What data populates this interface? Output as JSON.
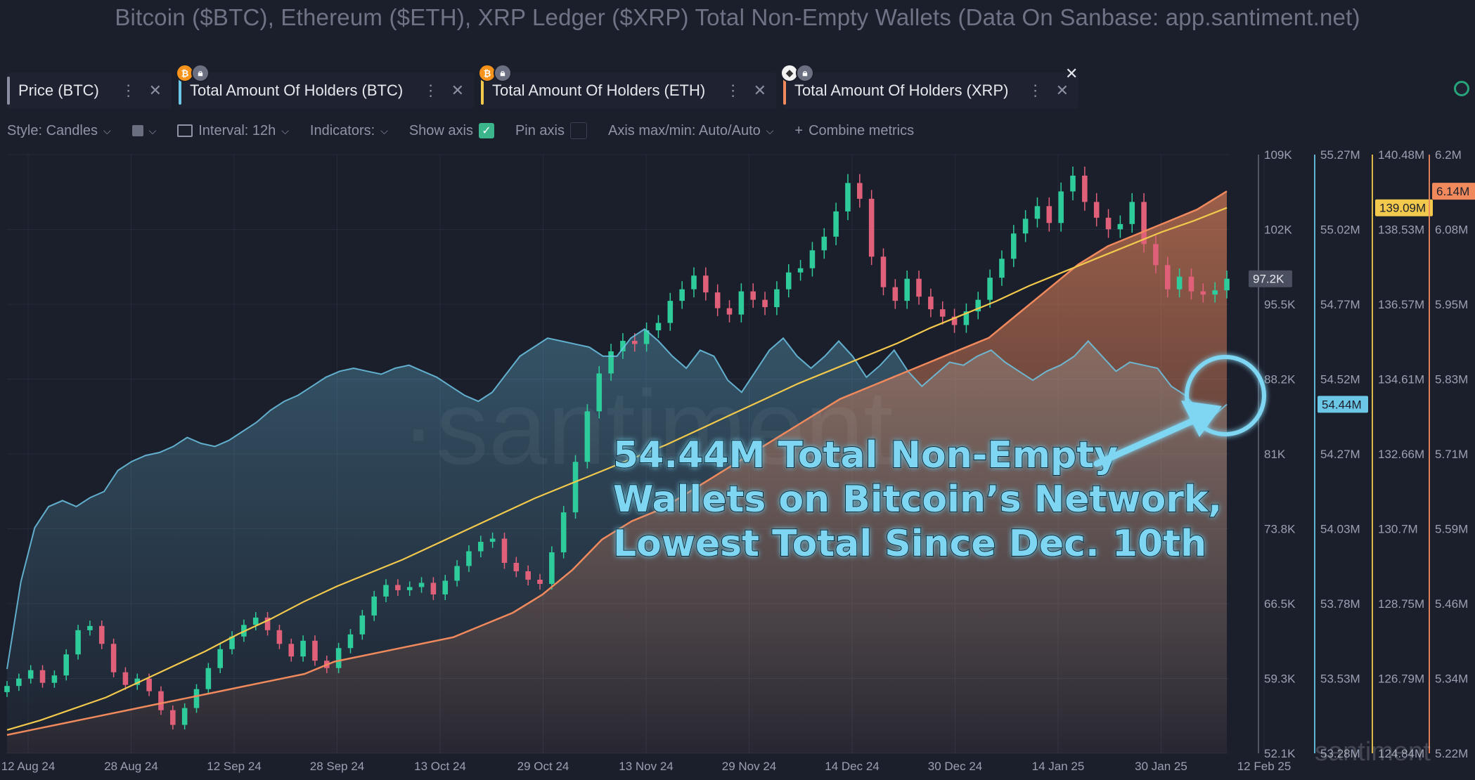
{
  "title": "Bitcoin ($BTC), Ethereum ($ETH), XRP Ledger ($XRP) Total Non-Empty Wallets (Data On Sanbase: app.santiment.net)",
  "tabs": [
    {
      "label": "Price (BTC)",
      "color": "#8a90a2",
      "badges": []
    },
    {
      "label": "Total Amount Of Holders (BTC)",
      "color": "#6cc6e6",
      "badges": [
        "B",
        "lock"
      ]
    },
    {
      "label": "Total Amount Of Holders (ETH)",
      "color": "#f2c94c",
      "badges": [
        "B",
        "lock"
      ]
    },
    {
      "label": "Total Amount Of Holders (XRP)",
      "color": "#f08a5d",
      "badges": [
        "ETH",
        "lock"
      ]
    }
  ],
  "toolbar": {
    "style": "Style: Candles",
    "interval": "Interval: 12h",
    "indicators": "Indicators:",
    "show_axis": "Show axis",
    "pin_axis": "Pin axis",
    "axis_maxmin": "Axis max/min: Auto/Auto",
    "combine": "Combine metrics"
  },
  "watermark": "·santiment",
  "brand": "santiment",
  "annotation": [
    "54.44M Total Non-Empty",
    "Wallets on Bitcoin’s Network,",
    "Lowest Total Since Dec. 10th"
  ],
  "colors": {
    "bg": "#1b1e2b",
    "up": "#2ecc9a",
    "down": "#e0607a",
    "btc_holders": "#6cc6e6",
    "eth_holders": "#f2c94c",
    "xrp_holders": "#f08a5d",
    "annotation": "#7fd6f2"
  },
  "chart_data": {
    "type": "line",
    "x_ticks": [
      "12 Aug 24",
      "28 Aug 24",
      "12 Sep 24",
      "28 Sep 24",
      "13 Oct 24",
      "29 Oct 24",
      "13 Nov 24",
      "29 Nov 24",
      "14 Dec 24",
      "30 Dec 24",
      "14 Jan 25",
      "30 Jan 25",
      "12 Feb 25"
    ],
    "axes": [
      {
        "name": "Price (BTC)",
        "ticks": [
          "109K",
          "102K",
          "95.5K",
          "88.2K",
          "81K",
          "73.8K",
          "66.5K",
          "59.3K",
          "52.1K"
        ],
        "range": [
          52100,
          109000
        ],
        "current": "97.2K",
        "color": "#8a90a2"
      },
      {
        "name": "Total Amount Of Holders (BTC)",
        "ticks": [
          "55.27M",
          "55.02M",
          "54.77M",
          "54.52M",
          "54.27M",
          "54.03M",
          "53.78M",
          "53.53M",
          "53.28M"
        ],
        "range": [
          53.28,
          55.27
        ],
        "current": "54.44M",
        "color": "#6cc6e6"
      },
      {
        "name": "Total Amount Of Holders (ETH)",
        "ticks": [
          "140.48M",
          "138.53M",
          "136.57M",
          "134.61M",
          "132.66M",
          "130.7M",
          "128.75M",
          "126.79M",
          "124.84M"
        ],
        "range": [
          124.84,
          140.48
        ],
        "current": "139.09M",
        "color": "#f2c94c"
      },
      {
        "name": "Total Amount Of Holders (XRP)",
        "ticks": [
          "6.2M",
          "6.08M",
          "5.95M",
          "5.83M",
          "5.71M",
          "5.59M",
          "5.46M",
          "5.34M",
          "5.22M"
        ],
        "range": [
          5.22,
          6.2
        ],
        "current": "6.14M",
        "color": "#f08a5d"
      }
    ],
    "series": [
      {
        "name": "Price (BTC)",
        "style": "candles",
        "values": [
          58500,
          59200,
          60000,
          58800,
          59500,
          61500,
          63800,
          64200,
          62500,
          59800,
          58600,
          59200,
          58000,
          56200,
          54800,
          56400,
          58200,
          60200,
          62000,
          63200,
          64300,
          65000,
          63800,
          62500,
          61300,
          62800,
          60900,
          60200,
          62100,
          63400,
          65200,
          67000,
          68100,
          67600,
          67900,
          68300,
          67200,
          68500,
          69900,
          71300,
          72200,
          72500,
          70200,
          69400,
          68600,
          68200,
          71200,
          75000,
          79800,
          84600,
          88200,
          90300,
          91300,
          91000,
          92300,
          93000,
          95100,
          96200,
          97500,
          95900,
          94400,
          93800,
          96000,
          95200,
          94500,
          96200,
          97800,
          98200,
          99900,
          101200,
          103600,
          106300,
          104800,
          99300,
          96400,
          95100,
          97200,
          95500,
          94300,
          93600,
          92800,
          94100,
          95200,
          97300,
          99100,
          101500,
          102900,
          104100,
          102500,
          105500,
          107000,
          104500,
          103000,
          101900,
          102400,
          104500,
          100500,
          98500,
          96200,
          97400,
          96000,
          95700,
          96100,
          97200
        ],
        "range": [
          52100,
          109000
        ]
      },
      {
        "name": "Total Amount Of Holders (BTC)",
        "style": "area",
        "color": "#6cc6e6",
        "values": [
          53.56,
          53.85,
          54.03,
          54.1,
          54.12,
          54.1,
          54.13,
          54.15,
          54.22,
          54.25,
          54.27,
          54.28,
          54.3,
          54.33,
          54.31,
          54.3,
          54.32,
          54.35,
          54.38,
          54.42,
          54.45,
          54.47,
          54.5,
          54.53,
          54.55,
          54.56,
          54.55,
          54.54,
          54.56,
          54.57,
          54.55,
          54.53,
          54.5,
          54.47,
          54.45,
          54.48,
          54.54,
          54.6,
          54.63,
          54.66,
          54.65,
          54.64,
          54.63,
          54.6,
          54.6,
          54.66,
          54.69,
          54.65,
          54.6,
          54.56,
          54.62,
          54.6,
          54.52,
          54.48,
          54.55,
          54.62,
          54.66,
          54.6,
          54.56,
          54.6,
          54.65,
          54.6,
          54.53,
          54.57,
          54.62,
          54.55,
          54.5,
          54.54,
          54.58,
          54.57,
          54.6,
          54.62,
          54.58,
          54.55,
          54.52,
          54.55,
          54.57,
          54.6,
          54.65,
          54.6,
          54.55,
          54.58,
          54.57,
          54.56,
          54.5,
          54.47,
          54.42,
          54.4,
          54.44
        ]
      },
      {
        "name": "Total Amount Of Holders (ETH)",
        "style": "line",
        "color": "#f2c94c",
        "values": [
          125.45,
          125.7,
          126.0,
          126.3,
          126.7,
          127.1,
          127.5,
          127.95,
          128.35,
          128.8,
          129.2,
          129.55,
          129.9,
          130.3,
          130.7,
          131.1,
          131.5,
          131.85,
          132.2,
          132.55,
          132.9,
          133.3,
          133.7,
          134.1,
          134.5,
          134.85,
          135.2,
          135.55,
          135.95,
          136.3,
          136.65,
          137.05,
          137.4,
          137.75,
          138.1,
          138.45,
          138.75,
          139.09
        ]
      },
      {
        "name": "Total Amount Of Holders (XRP)",
        "style": "area",
        "color": "#f08a5d",
        "values": [
          5.25,
          5.26,
          5.27,
          5.28,
          5.29,
          5.3,
          5.31,
          5.32,
          5.33,
          5.34,
          5.35,
          5.37,
          5.38,
          5.39,
          5.4,
          5.41,
          5.43,
          5.45,
          5.48,
          5.52,
          5.57,
          5.6,
          5.62,
          5.65,
          5.68,
          5.71,
          5.74,
          5.77,
          5.8,
          5.82,
          5.84,
          5.86,
          5.88,
          5.9,
          5.94,
          5.98,
          6.02,
          6.05,
          6.07,
          6.09,
          6.11,
          6.14
        ]
      }
    ]
  }
}
